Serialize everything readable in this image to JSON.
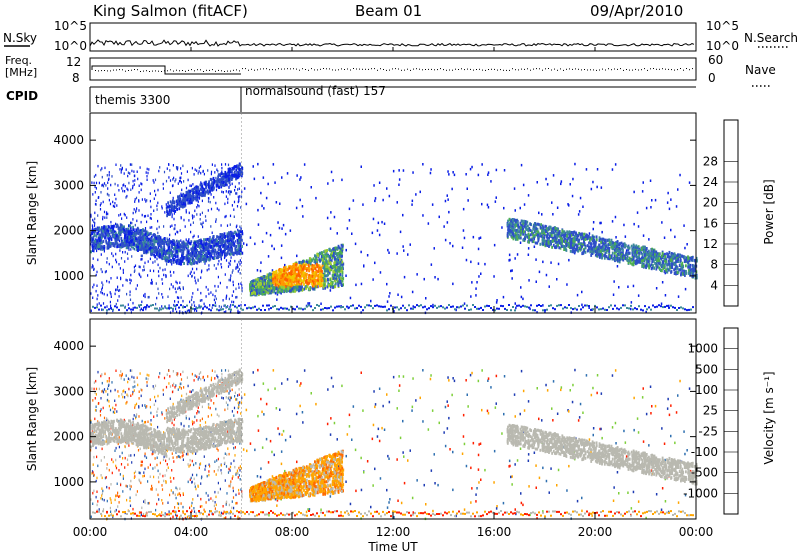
{
  "header": {
    "station": "King Salmon (fitACF)",
    "beam": "Beam 01",
    "date": "09/Apr/2010"
  },
  "summary": {
    "nsky_label": "N.Sky",
    "nsky_ticks": [
      "10^5",
      "10^0"
    ],
    "nsearch_label": "N.Search",
    "nsearch_ticks": [
      "10^5",
      "10^0"
    ],
    "freq_label_line1": "Freq.",
    "freq_label_line2": "[MHz]",
    "freq_ticks": [
      "12",
      "8"
    ],
    "nave_label": "Nave",
    "nave_ticks": [
      "60",
      "0"
    ],
    "cpid_label": "CPID",
    "cpid_modes": [
      {
        "name": "themis 3300",
        "start_hour": 0
      },
      {
        "name": "normalsound (fast) 157",
        "start_hour": 6
      }
    ]
  },
  "chart_data": [
    {
      "type": "heatmap",
      "name": "power",
      "ylabel": "Slant Range [km]",
      "xlabel": "",
      "x_ticks": [
        "00:00",
        "04:00",
        "08:00",
        "12:00",
        "16:00",
        "20:00",
        "00:00"
      ],
      "xlim_hours": [
        0,
        24
      ],
      "y_ticks": [
        "1000",
        "2000",
        "3000",
        "4000"
      ],
      "ylim_km": [
        180,
        4600
      ],
      "colorbar": {
        "label": "Power [dB]",
        "ticks": [
          "4",
          "8",
          "12",
          "16",
          "20",
          "24",
          "28"
        ],
        "colors": [
          "#0a1ee6",
          "#2e4fc8",
          "#3c8a9a",
          "#4caf50",
          "#9acd32",
          "#f0c800",
          "#ff9900",
          "#ff6000",
          "#ff2000"
        ]
      },
      "features": [
        {
          "region": "band",
          "hours": [
            0,
            6
          ],
          "range_km": [
            1400,
            2100
          ],
          "db": 8
        },
        {
          "region": "lobe",
          "hours": [
            6.5,
            10
          ],
          "range_km": [
            700,
            1600
          ],
          "db": 20
        },
        {
          "region": "band",
          "hours": [
            16.5,
            24
          ],
          "range_km": [
            1100,
            2200
          ],
          "db": 10
        }
      ]
    },
    {
      "type": "heatmap",
      "name": "velocity",
      "ylabel": "Slant Range [km]",
      "xlabel": "Time UT",
      "x_ticks": [
        "00:00",
        "04:00",
        "08:00",
        "12:00",
        "16:00",
        "20:00",
        "00:00"
      ],
      "xlim_hours": [
        0,
        24
      ],
      "y_ticks": [
        "1000",
        "2000",
        "3000",
        "4000"
      ],
      "ylim_km": [
        180,
        4600
      ],
      "colorbar": {
        "label": "Velocity [m s⁻¹]",
        "ticks": [
          "1000",
          "500",
          "100",
          "25",
          "-25",
          "-100",
          "-500",
          "-1000"
        ],
        "colors": [
          "#1f3cb4",
          "#2e6fb0",
          "#3aa05a",
          "#7dcf3a",
          "#b9b9b0",
          "#b9b9b0",
          "#ffa500",
          "#ff6a00",
          "#ff2000"
        ]
      },
      "features": [
        {
          "region": "ground scatter",
          "hours": [
            0,
            6
          ],
          "range_km": [
            1400,
            2500
          ],
          "velocity": 0
        },
        {
          "region": "lobe",
          "hours": [
            6.5,
            10
          ],
          "range_km": [
            700,
            1700
          ],
          "velocity": -150
        },
        {
          "region": "ground scatter",
          "hours": [
            16.5,
            24
          ],
          "range_km": [
            1100,
            2200
          ],
          "velocity": 0
        }
      ]
    }
  ]
}
